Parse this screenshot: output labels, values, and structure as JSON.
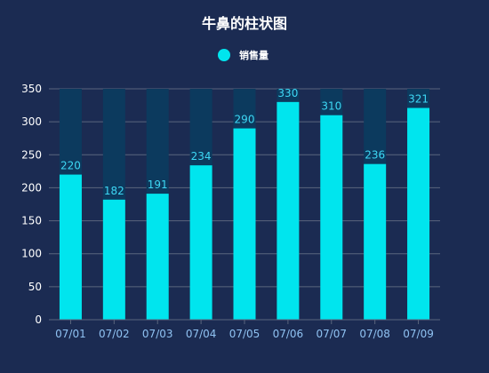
{
  "colors": {
    "background": "#1b2b52",
    "bar": "#00e5ee",
    "bar_track": "#0c3a5e",
    "grid": "#5a667e",
    "axis_label": "#8fc2f2",
    "data_label": "#3ed7f4"
  },
  "chart_data": {
    "type": "bar",
    "title": "牛鼻的柱状图",
    "categories": [
      "07/01",
      "07/02",
      "07/03",
      "07/04",
      "07/05",
      "07/06",
      "07/07",
      "07/08",
      "07/09"
    ],
    "series": [
      {
        "name": "销售量",
        "values": [
          220,
          182,
          191,
          234,
          290,
          330,
          310,
          236,
          321
        ]
      }
    ],
    "ylim": [
      0,
      350
    ],
    "yticks": [
      0,
      50,
      100,
      150,
      200,
      250,
      300,
      350
    ],
    "grid": true,
    "legend": "top-center",
    "background_bars": true
  }
}
